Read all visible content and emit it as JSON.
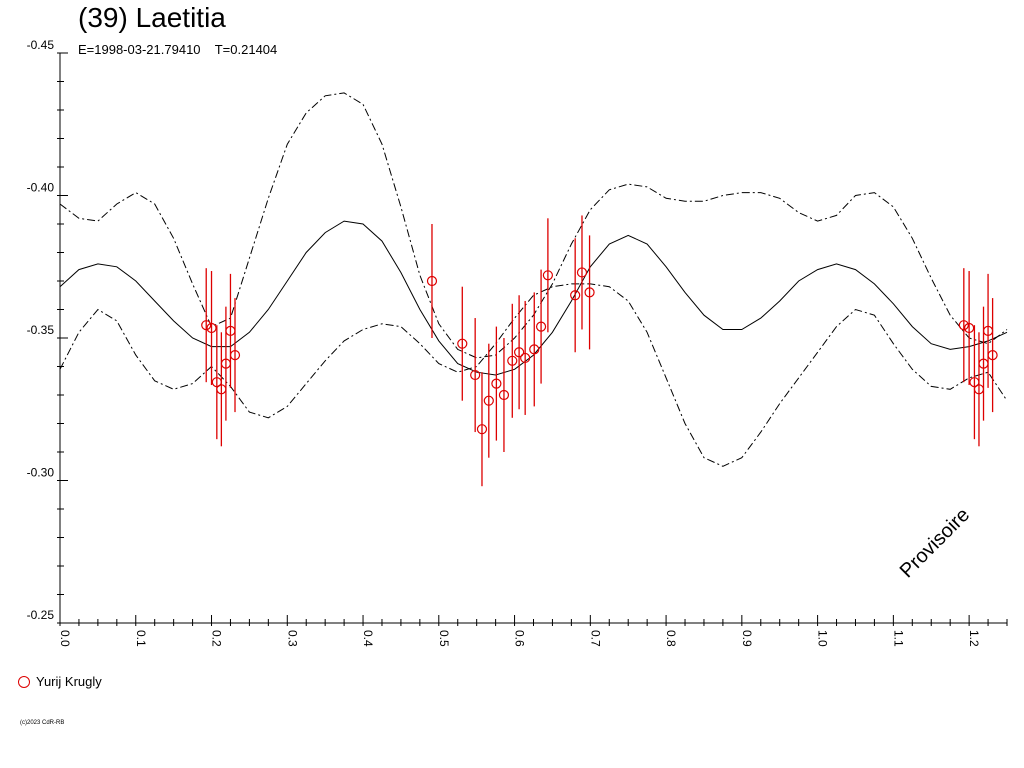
{
  "chart_data": {
    "type": "scatter",
    "title": "(39) Laetitia",
    "subtitle": "E=1998-03-21.79410    T=0.21404",
    "stamp": "Provisoire",
    "copyright": "(c)2023 CdR-RB",
    "x_range": [
      0.0,
      1.25
    ],
    "y_range": [
      -0.45,
      -0.25
    ],
    "y_inverted": true,
    "x_ticks": [
      "0.0",
      "0.1",
      "0.2",
      "0.3",
      "0.4",
      "0.5",
      "0.6",
      "0.7",
      "0.8",
      "0.9",
      "1.0",
      "1.1",
      "1.2"
    ],
    "y_ticks": [
      "-0.45",
      "-0.40",
      "-0.35",
      "-0.30",
      "-0.25"
    ],
    "legend": [
      {
        "name": "Yurij Krugly",
        "color": "#dd0000",
        "marker": "open-circle"
      }
    ],
    "series": [
      {
        "name": "Yurij Krugly",
        "color": "#dd0000",
        "points": [
          {
            "x": 0.193,
            "y": -0.3545,
            "err": 0.02
          },
          {
            "x": 0.2,
            "y": -0.3535,
            "err": 0.02
          },
          {
            "x": 0.207,
            "y": -0.3345,
            "err": 0.02
          },
          {
            "x": 0.213,
            "y": -0.332,
            "err": 0.02
          },
          {
            "x": 0.219,
            "y": -0.341,
            "err": 0.02
          },
          {
            "x": 0.225,
            "y": -0.3525,
            "err": 0.02
          },
          {
            "x": 0.231,
            "y": -0.344,
            "err": 0.02
          },
          {
            "x": 0.491,
            "y": -0.37,
            "err": 0.02
          },
          {
            "x": 0.531,
            "y": -0.348,
            "err": 0.02
          },
          {
            "x": 0.548,
            "y": -0.337,
            "err": 0.02
          },
          {
            "x": 0.557,
            "y": -0.318,
            "err": 0.02
          },
          {
            "x": 0.566,
            "y": -0.328,
            "err": 0.02
          },
          {
            "x": 0.576,
            "y": -0.334,
            "err": 0.02
          },
          {
            "x": 0.586,
            "y": -0.33,
            "err": 0.02
          },
          {
            "x": 0.597,
            "y": -0.342,
            "err": 0.02
          },
          {
            "x": 0.606,
            "y": -0.345,
            "err": 0.02
          },
          {
            "x": 0.614,
            "y": -0.343,
            "err": 0.02
          },
          {
            "x": 0.626,
            "y": -0.346,
            "err": 0.02
          },
          {
            "x": 0.635,
            "y": -0.354,
            "err": 0.02
          },
          {
            "x": 0.644,
            "y": -0.372,
            "err": 0.02
          },
          {
            "x": 0.68,
            "y": -0.365,
            "err": 0.02
          },
          {
            "x": 0.689,
            "y": -0.373,
            "err": 0.02
          },
          {
            "x": 0.699,
            "y": -0.366,
            "err": 0.02
          },
          {
            "x": 1.193,
            "y": -0.3545,
            "err": 0.02
          },
          {
            "x": 1.2,
            "y": -0.3535,
            "err": 0.02
          },
          {
            "x": 1.207,
            "y": -0.3345,
            "err": 0.02
          },
          {
            "x": 1.213,
            "y": -0.332,
            "err": 0.02
          },
          {
            "x": 1.219,
            "y": -0.341,
            "err": 0.02
          },
          {
            "x": 1.225,
            "y": -0.3525,
            "err": 0.02
          },
          {
            "x": 1.231,
            "y": -0.344,
            "err": 0.02
          }
        ]
      }
    ],
    "fit_curve": {
      "style": "solid",
      "x": [
        0.0,
        0.025,
        0.05,
        0.075,
        0.1,
        0.125,
        0.15,
        0.175,
        0.2,
        0.225,
        0.25,
        0.275,
        0.3,
        0.325,
        0.35,
        0.375,
        0.4,
        0.425,
        0.45,
        0.475,
        0.5,
        0.525,
        0.55,
        0.575,
        0.6,
        0.625,
        0.65,
        0.675,
        0.7,
        0.725,
        0.75,
        0.775,
        0.8,
        0.825,
        0.85,
        0.875,
        0.9,
        0.925,
        0.95,
        0.975,
        1.0,
        1.025,
        1.05,
        1.075,
        1.1,
        1.125,
        1.15,
        1.175,
        1.2,
        1.225,
        1.25
      ],
      "y": [
        -0.368,
        -0.374,
        -0.376,
        -0.375,
        -0.37,
        -0.363,
        -0.356,
        -0.35,
        -0.347,
        -0.347,
        -0.352,
        -0.36,
        -0.37,
        -0.38,
        -0.387,
        -0.391,
        -0.39,
        -0.384,
        -0.373,
        -0.36,
        -0.349,
        -0.341,
        -0.338,
        -0.337,
        -0.339,
        -0.344,
        -0.352,
        -0.363,
        -0.375,
        -0.383,
        -0.386,
        -0.383,
        -0.375,
        -0.366,
        -0.358,
        -0.353,
        -0.353,
        -0.357,
        -0.363,
        -0.37,
        -0.374,
        -0.376,
        -0.374,
        -0.369,
        -0.362,
        -0.354,
        -0.348,
        -0.346,
        -0.347,
        -0.349,
        -0.352
      ]
    },
    "envelope_upper": {
      "style": "dash-dot",
      "x": [
        0.0,
        0.025,
        0.05,
        0.075,
        0.1,
        0.125,
        0.15,
        0.175,
        0.2,
        0.225,
        0.25,
        0.275,
        0.3,
        0.325,
        0.35,
        0.375,
        0.4,
        0.425,
        0.45,
        0.475,
        0.5,
        0.525,
        0.55,
        0.575,
        0.6,
        0.625,
        0.65,
        0.675,
        0.7,
        0.725,
        0.75,
        0.775,
        0.8,
        0.825,
        0.85,
        0.875,
        0.9,
        0.925,
        0.95,
        0.975,
        1.0,
        1.025,
        1.05,
        1.075,
        1.1,
        1.125,
        1.15,
        1.175,
        1.2,
        1.225,
        1.25
      ],
      "y": [
        -0.397,
        -0.392,
        -0.391,
        -0.397,
        -0.401,
        -0.397,
        -0.385,
        -0.369,
        -0.354,
        -0.357,
        -0.378,
        -0.399,
        -0.418,
        -0.429,
        -0.435,
        -0.436,
        -0.432,
        -0.418,
        -0.396,
        -0.372,
        -0.355,
        -0.346,
        -0.343,
        -0.344,
        -0.35,
        -0.358,
        -0.369,
        -0.383,
        -0.395,
        -0.402,
        -0.404,
        -0.403,
        -0.399,
        -0.398,
        -0.398,
        -0.4,
        -0.401,
        -0.401,
        -0.399,
        -0.394,
        -0.391,
        -0.393,
        -0.4,
        -0.401,
        -0.396,
        -0.385,
        -0.371,
        -0.358,
        -0.35,
        -0.348,
        -0.353
      ]
    },
    "envelope_lower": {
      "style": "dash-dot",
      "x": [
        0.0,
        0.025,
        0.05,
        0.075,
        0.1,
        0.125,
        0.15,
        0.175,
        0.2,
        0.225,
        0.25,
        0.275,
        0.3,
        0.325,
        0.35,
        0.375,
        0.4,
        0.425,
        0.45,
        0.475,
        0.5,
        0.525,
        0.55,
        0.575,
        0.6,
        0.625,
        0.65,
        0.675,
        0.7,
        0.725,
        0.75,
        0.775,
        0.8,
        0.825,
        0.85,
        0.875,
        0.9,
        0.925,
        0.95,
        0.975,
        1.0,
        1.025,
        1.05,
        1.075,
        1.1,
        1.125,
        1.15,
        1.175,
        1.2,
        1.225,
        1.25
      ],
      "y": [
        -0.339,
        -0.352,
        -0.36,
        -0.356,
        -0.344,
        -0.335,
        -0.332,
        -0.334,
        -0.34,
        -0.333,
        -0.324,
        -0.322,
        -0.326,
        -0.334,
        -0.342,
        -0.349,
        -0.353,
        -0.355,
        -0.354,
        -0.348,
        -0.341,
        -0.338,
        -0.34,
        -0.348,
        -0.357,
        -0.365,
        -0.368,
        -0.369,
        -0.369,
        -0.368,
        -0.363,
        -0.352,
        -0.336,
        -0.32,
        -0.308,
        -0.305,
        -0.308,
        -0.317,
        -0.327,
        -0.336,
        -0.345,
        -0.354,
        -0.36,
        -0.358,
        -0.348,
        -0.339,
        -0.333,
        -0.332,
        -0.336,
        -0.338,
        -0.328
      ]
    }
  }
}
